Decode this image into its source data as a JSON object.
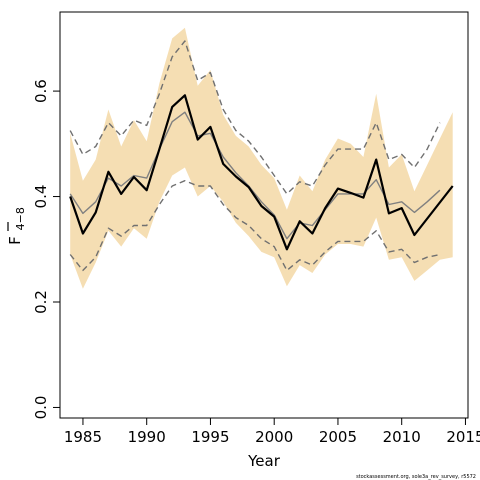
{
  "chart_data": {
    "type": "line",
    "xlabel": "Year",
    "ylabel_main": "F",
    "ylabel_sub": "4−8",
    "xlim": [
      1983.2,
      2015.2
    ],
    "ylim": [
      -0.02,
      0.75
    ],
    "x_ticks": [
      1985,
      1990,
      1995,
      2000,
      2005,
      2010,
      2015
    ],
    "y_ticks": [
      0.0,
      0.2,
      0.4,
      0.6
    ],
    "y_tick_labels": [
      "0.0",
      "0.2",
      "0.4",
      "0.6"
    ],
    "credit": "stockassessment.org, sole3a_rev_survey, r5572",
    "colors": {
      "band": "#f5deb3",
      "estimate": "#000000",
      "retro_line": "#808080",
      "retro_bounds": "#707070"
    },
    "confidence_band": {
      "x": [
        1984,
        1985,
        1986,
        1987,
        1988,
        1989,
        1990,
        1991,
        1992,
        1993,
        1994,
        1995,
        1996,
        1997,
        1998,
        1999,
        2000,
        2001,
        2002,
        2003,
        2004,
        2005,
        2006,
        2007,
        2008,
        2009,
        2010,
        2011,
        2012,
        2013,
        2014
      ],
      "lower": [
        0.29,
        0.225,
        0.275,
        0.335,
        0.305,
        0.34,
        0.32,
        0.39,
        0.44,
        0.455,
        0.4,
        0.42,
        0.39,
        0.35,
        0.325,
        0.295,
        0.285,
        0.23,
        0.27,
        0.255,
        0.29,
        0.31,
        0.31,
        0.305,
        0.36,
        0.28,
        0.285,
        0.24,
        0.26,
        0.28,
        0.285
      ],
      "upper": [
        0.52,
        0.43,
        0.47,
        0.565,
        0.495,
        0.545,
        0.505,
        0.615,
        0.7,
        0.72,
        0.61,
        0.64,
        0.555,
        0.515,
        0.495,
        0.46,
        0.435,
        0.375,
        0.44,
        0.41,
        0.47,
        0.51,
        0.5,
        0.475,
        0.595,
        0.455,
        0.48,
        0.41,
        0.46,
        0.51,
        0.56
      ]
    },
    "series": [
      {
        "x": [
          1984,
          1985,
          1986,
          1987,
          1988,
          1989,
          1990,
          1991,
          1992,
          1993,
          1994,
          1995,
          1996,
          1997,
          1998,
          1999,
          2000,
          2001,
          2002,
          2003,
          2004,
          2005,
          2006,
          2007,
          2008,
          2009,
          2010,
          2011,
          2014
        ],
        "values": [
          0.4,
          0.33,
          0.37,
          0.447,
          0.405,
          0.437,
          0.412,
          0.49,
          0.57,
          0.592,
          0.508,
          0.532,
          0.462,
          0.438,
          0.418,
          0.382,
          0.362,
          0.3,
          0.353,
          0.33,
          0.378,
          0.415,
          0.407,
          0.398,
          0.47,
          0.368,
          0.378,
          0.327,
          0.42
        ],
        "style": "solid-thick"
      },
      {
        "x": [
          1984,
          1985,
          1986,
          1987,
          1988,
          1989,
          1990,
          1991,
          1992,
          1993,
          1994,
          1995,
          1996,
          1997,
          1998,
          1999,
          2000,
          2001,
          2002,
          2003,
          2004,
          2005,
          2006,
          2007,
          2008,
          2009,
          2010,
          2011,
          2012,
          2013
        ],
        "values": [
          0.405,
          0.368,
          0.39,
          0.435,
          0.42,
          0.44,
          0.435,
          0.49,
          0.542,
          0.56,
          0.515,
          0.52,
          0.475,
          0.445,
          0.42,
          0.39,
          0.365,
          0.32,
          0.35,
          0.345,
          0.375,
          0.405,
          0.405,
          0.405,
          0.432,
          0.385,
          0.39,
          0.37,
          0.39,
          0.412
        ],
        "style": "solid-thin"
      },
      {
        "x": [
          1984,
          1985,
          1986,
          1987,
          1988,
          1989,
          1990,
          1991,
          1992,
          1993,
          1994,
          1995,
          1996,
          1997,
          1998,
          1999,
          2000,
          2001,
          2002,
          2003,
          2004,
          2005,
          2006,
          2007,
          2008,
          2009,
          2010,
          2011,
          2012,
          2013
        ],
        "values": [
          0.525,
          0.48,
          0.495,
          0.54,
          0.515,
          0.545,
          0.535,
          0.595,
          0.665,
          0.695,
          0.62,
          0.635,
          0.565,
          0.525,
          0.505,
          0.475,
          0.44,
          0.405,
          0.428,
          0.42,
          0.46,
          0.49,
          0.49,
          0.49,
          0.54,
          0.47,
          0.48,
          0.455,
          0.49,
          0.54
        ],
        "style": "dashed"
      },
      {
        "x": [
          1984,
          1985,
          1986,
          1987,
          1988,
          1989,
          1990,
          1991,
          1992,
          1993,
          1994,
          1995,
          1996,
          1997,
          1998,
          1999,
          2000,
          2001,
          2002,
          2003,
          2004,
          2005,
          2006,
          2007,
          2008,
          2009,
          2010,
          2011,
          2012,
          2013
        ],
        "values": [
          0.29,
          0.26,
          0.285,
          0.34,
          0.325,
          0.345,
          0.345,
          0.385,
          0.42,
          0.43,
          0.42,
          0.42,
          0.385,
          0.36,
          0.345,
          0.32,
          0.305,
          0.26,
          0.28,
          0.27,
          0.295,
          0.315,
          0.315,
          0.315,
          0.335,
          0.295,
          0.3,
          0.275,
          0.285,
          0.29
        ],
        "style": "dashed"
      }
    ]
  }
}
